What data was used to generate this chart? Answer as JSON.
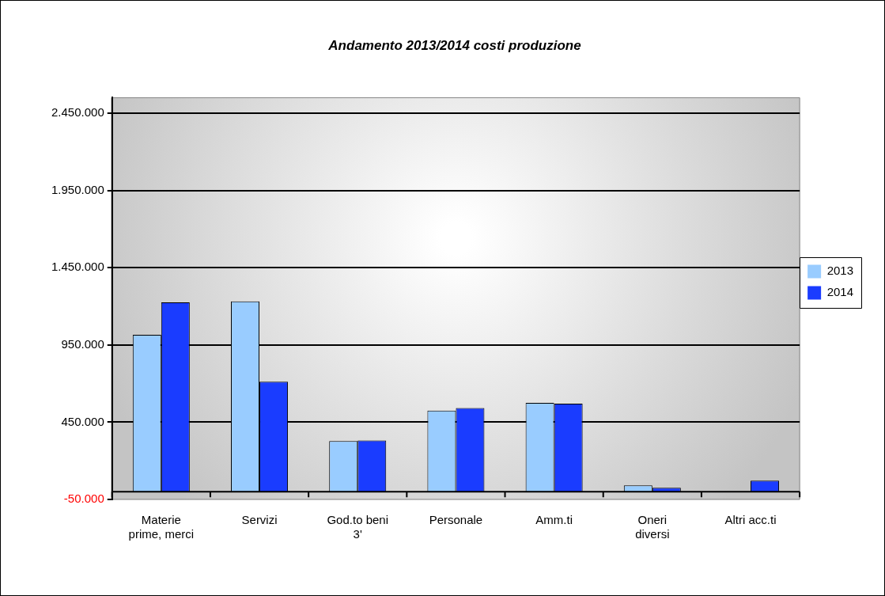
{
  "chart_data": {
    "type": "bar",
    "title": "Andamento 2013/2014 costi produzione",
    "categories": [
      "Materie prime, merci",
      "Servizi",
      "God.to beni 3'",
      "Personale",
      "Amm.ti",
      "Oneri diversi",
      "Altri acc.ti"
    ],
    "series": [
      {
        "name": "2013",
        "color": "#99ccff",
        "values": [
          1015000,
          1232000,
          328000,
          525000,
          575000,
          41000,
          null
        ]
      },
      {
        "name": "2014",
        "color": "#1a3cff",
        "values": [
          1225000,
          712000,
          331000,
          541000,
          570000,
          26000,
          72000
        ]
      }
    ],
    "ylim": [
      -50000,
      2550000
    ],
    "yticks": [
      {
        "value": -50000,
        "label": "-50.000"
      },
      {
        "value": 450000,
        "label": "450.000"
      },
      {
        "value": 950000,
        "label": "950.000"
      },
      {
        "value": 1450000,
        "label": "1.450.000"
      },
      {
        "value": 1950000,
        "label": "1.950.000"
      },
      {
        "value": 2450000,
        "label": "2.450.000"
      }
    ],
    "grid": "y",
    "legend": "right"
  }
}
